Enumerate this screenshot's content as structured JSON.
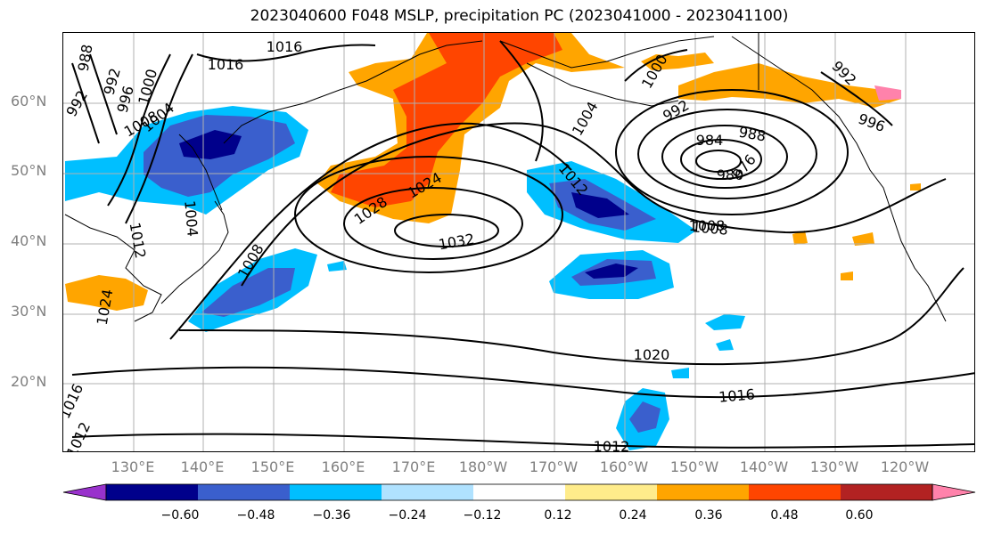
{
  "title": "2023040600 F048 MSLP, precipitation PC (2023041000 - 2023041100)",
  "lat_labels": [
    "60°N",
    "50°N",
    "40°N",
    "30°N",
    "20°N"
  ],
  "lon_labels": [
    "130°E",
    "140°E",
    "150°E",
    "160°E",
    "170°E",
    "180°W",
    "170°W",
    "160°W",
    "150°W",
    "140°W",
    "130°W",
    "120°W"
  ],
  "isobar_labels": [
    "1016",
    "1016",
    "988",
    "992",
    "996",
    "1000",
    "1004",
    "1008",
    "992",
    "1004",
    "1008",
    "1012",
    "1024",
    "1028",
    "1024",
    "1032",
    "1012",
    "1008",
    "1000",
    "1004",
    "992",
    "996",
    "988",
    "984",
    "976",
    "980",
    "992",
    "1008",
    "1020",
    "1016",
    "1012",
    "1016",
    "1012"
  ],
  "colorbar": {
    "ticks": [
      "−0.60",
      "−0.48",
      "−0.36",
      "−0.24",
      "−0.12",
      "0.12",
      "0.24",
      "0.36",
      "0.48",
      "0.60"
    ],
    "colors": [
      "#9932cc",
      "#00008b",
      "#3a5fcd",
      "#00bfff",
      "#b0e2ff",
      "#ffffff",
      "#ffec8b",
      "#ffa500",
      "#ff4500",
      "#b22222",
      "#ff82ab"
    ]
  }
}
